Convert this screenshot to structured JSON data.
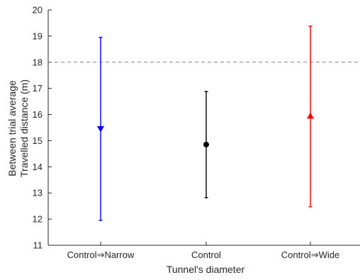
{
  "chart_data": {
    "type": "errorbar",
    "xlabel": "Tunnel's diameter",
    "ylabel_lines": [
      "Between trial average",
      "Travelled distance (m)"
    ],
    "ylim": [
      11,
      20
    ],
    "yticks": [
      11,
      12,
      13,
      14,
      15,
      16,
      17,
      18,
      19,
      20
    ],
    "ytick_labels": [
      "11",
      "12",
      "13",
      "14",
      "15",
      "16",
      "17",
      "18",
      "19",
      "20"
    ],
    "categories": [
      "Control⇒Narrow",
      "Control",
      "Control⇒Wide"
    ],
    "reference_line": {
      "y": 18,
      "style": "dashed",
      "color": "#808080"
    },
    "points": [
      {
        "category": "Control⇒Narrow",
        "mean": 15.45,
        "lower": 11.95,
        "upper": 18.95,
        "marker": "triangle-down",
        "color": "#0000ff"
      },
      {
        "category": "Control",
        "mean": 14.85,
        "lower": 12.82,
        "upper": 16.88,
        "marker": "circle",
        "color": "#000000"
      },
      {
        "category": "Control⇒Wide",
        "mean": 15.95,
        "lower": 12.47,
        "upper": 19.38,
        "marker": "triangle-up",
        "color": "#ff0000"
      }
    ],
    "grid": false
  },
  "colors": {
    "axis": "#262626",
    "reference": "#808080"
  }
}
